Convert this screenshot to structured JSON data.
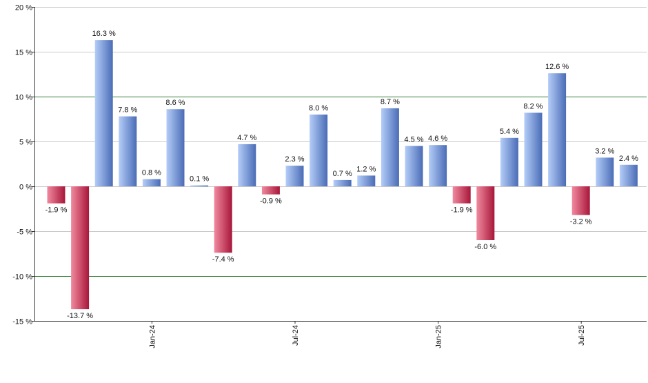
{
  "chart_data": {
    "type": "bar",
    "title": "",
    "xlabel": "",
    "ylabel": "",
    "ylim": [
      -15,
      20
    ],
    "y_ticks": [
      20,
      15,
      10,
      5,
      0,
      -5,
      -10,
      -15
    ],
    "y_tick_labels": [
      "20 %",
      "15 %",
      "10 %",
      "5 %",
      "0 %",
      "-5 %",
      "-10 %",
      "-15 %"
    ],
    "x_tick_labels": [
      {
        "label": "Jan-24",
        "bar_index": 4
      },
      {
        "label": "Jul-24",
        "bar_index": 10
      },
      {
        "label": "Jan-25",
        "bar_index": 16
      },
      {
        "label": "Jul-25",
        "bar_index": 22
      }
    ],
    "values": [
      -1.9,
      -13.7,
      16.3,
      7.8,
      0.8,
      8.6,
      0.1,
      -7.4,
      4.7,
      -0.9,
      2.3,
      8.0,
      0.7,
      1.2,
      8.7,
      4.5,
      4.6,
      -1.9,
      -6.0,
      5.4,
      8.2,
      12.6,
      -3.2,
      3.2,
      2.4
    ],
    "data_labels": [
      "-1.9 %",
      "-13.7 %",
      "16.3 %",
      "7.8 %",
      "0.8 %",
      "8.6 %",
      "0.1 %",
      "-7.4 %",
      "4.7 %",
      "-0.9 %",
      "2.3 %",
      "8.0 %",
      "0.7 %",
      "1.2 %",
      "8.7 %",
      "4.5 %",
      "4.6 %",
      "-1.9 %",
      "-6.0 %",
      "5.4 %",
      "8.2 %",
      "12.6 %",
      "-3.2 %",
      "3.2 %",
      "2.4 %"
    ],
    "reference_lines": [
      10,
      -10
    ],
    "grid": true,
    "legend": "none",
    "colors": {
      "positive_light": "#b4cdf8",
      "positive_dark": "#4a6cb6",
      "negative_light": "#f08a9e",
      "negative_dark": "#a8163a",
      "reference_line": "#2e7d32",
      "grid": "#c8c8c8",
      "axis": "#333333"
    }
  }
}
